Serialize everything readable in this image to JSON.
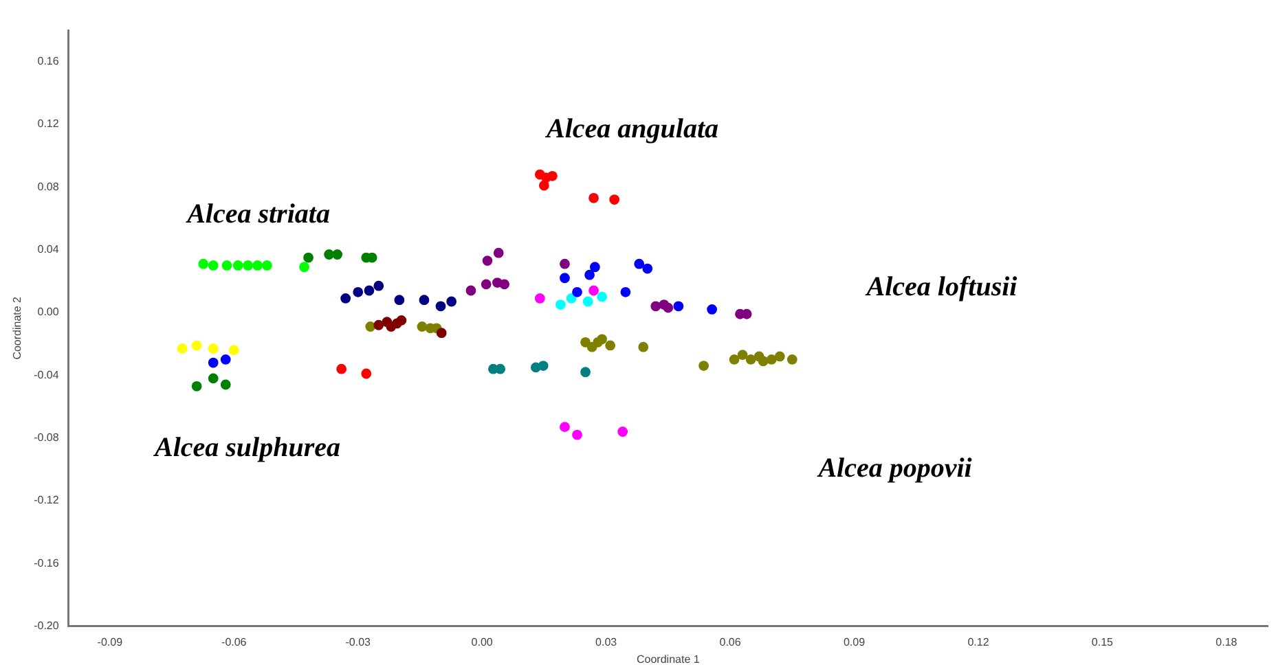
{
  "chart_data": {
    "type": "scatter",
    "xlabel": "Coordinate 1",
    "ylabel": "Coordinate 2",
    "xlim": [
      -0.1,
      0.19
    ],
    "ylim": [
      -0.2,
      0.18
    ],
    "xticks": [
      -0.09,
      -0.06,
      -0.03,
      {
        "value": 0,
        "label": "0.00"
      },
      0.03,
      0.06,
      0.09,
      0.12,
      0.15,
      0.18
    ],
    "yticks": [
      {
        "value": -0.2,
        "label": "-0.20"
      },
      -0.16,
      -0.12,
      -0.08,
      -0.04,
      {
        "value": 0,
        "label": "0.00"
      },
      0.04,
      0.08,
      0.12,
      0.16
    ],
    "grid": false,
    "legend": false,
    "marker": "circle",
    "series": [
      {
        "color": "#ff0000",
        "x": [
          0.014,
          0.0155,
          0.015,
          0.017,
          0.027,
          0.032,
          -0.034,
          -0.028
        ],
        "values": [
          0.088,
          0.086,
          0.081,
          0.087,
          0.073,
          0.072,
          -0.036,
          -0.039
        ]
      },
      {
        "color": "#00ff00",
        "x": [
          -0.0674,
          -0.065,
          -0.0617,
          -0.059,
          -0.0566,
          -0.0543,
          -0.052,
          -0.043
        ],
        "values": [
          0.031,
          0.03,
          0.03,
          0.03,
          0.03,
          0.03,
          0.03,
          0.029
        ]
      },
      {
        "color": "#008000",
        "x": [
          -0.042,
          -0.037,
          -0.035,
          -0.028,
          -0.0266
        ],
        "values": [
          0.035,
          0.037,
          0.037,
          0.035,
          0.035
        ]
      },
      {
        "color": "#008000",
        "x": [
          -0.069,
          -0.065,
          -0.062
        ],
        "values": [
          -0.047,
          -0.042,
          -0.046
        ]
      },
      {
        "color": "#ffff00",
        "x": [
          -0.0725,
          -0.069,
          -0.065,
          -0.06
        ],
        "values": [
          -0.023,
          -0.021,
          -0.023,
          -0.024
        ]
      },
      {
        "color": "#0000ff",
        "x": [
          -0.065,
          -0.062,
          0.02,
          0.026,
          0.0273,
          0.038,
          0.04,
          0.023,
          0.0347,
          0.0475,
          0.0556
        ],
        "values": [
          -0.032,
          -0.03,
          0.022,
          0.024,
          0.029,
          0.031,
          0.028,
          0.013,
          0.013,
          0.004,
          0.002
        ]
      },
      {
        "color": "#000080",
        "x": [
          -0.033,
          -0.03,
          -0.0273,
          -0.025,
          -0.02,
          -0.014,
          -0.01,
          -0.0074
        ],
        "values": [
          0.009,
          0.013,
          0.014,
          0.017,
          0.008,
          0.008,
          0.004,
          0.007
        ]
      },
      {
        "color": "#800000",
        "x": [
          -0.025,
          -0.023,
          -0.022,
          -0.0206,
          -0.0195,
          -0.0098
        ],
        "values": [
          -0.008,
          -0.006,
          -0.009,
          -0.007,
          -0.005,
          -0.013
        ]
      },
      {
        "color": "#808000",
        "x": [
          -0.027,
          -0.0145,
          -0.0125,
          -0.011,
          0.025,
          0.0266,
          0.028,
          0.029,
          0.031,
          0.039,
          0.0536,
          0.061,
          0.063,
          0.065,
          0.067,
          0.068,
          0.07,
          0.072,
          0.075
        ],
        "values": [
          -0.009,
          -0.009,
          -0.01,
          -0.01,
          -0.019,
          -0.022,
          -0.019,
          -0.017,
          -0.021,
          -0.022,
          -0.034,
          -0.03,
          -0.027,
          -0.03,
          -0.028,
          -0.031,
          -0.03,
          -0.028,
          -0.03
        ]
      },
      {
        "color": "#008080",
        "x": [
          0.0027,
          0.0044,
          0.013,
          0.0148,
          0.025
        ],
        "values": [
          -0.036,
          -0.036,
          -0.035,
          -0.034,
          -0.038
        ]
      },
      {
        "color": "#800080",
        "x": [
          0.0013,
          0.004,
          -0.0027,
          0.001,
          0.0037,
          0.0054,
          0.02,
          0.042,
          0.044,
          0.045,
          0.0624,
          0.064
        ],
        "values": [
          0.033,
          0.038,
          0.014,
          0.018,
          0.019,
          0.018,
          0.031,
          0.004,
          0.005,
          0.003,
          -0.001,
          -0.001
        ]
      },
      {
        "color": "#00ffff",
        "x": [
          0.019,
          0.0216,
          0.0256,
          0.029
        ],
        "values": [
          0.005,
          0.009,
          0.007,
          0.01
        ]
      },
      {
        "color": "#ff00ff",
        "x": [
          0.014,
          0.027,
          0.02,
          0.023,
          0.034
        ],
        "values": [
          0.009,
          0.014,
          -0.073,
          -0.078,
          -0.076
        ]
      }
    ],
    "annotations": [
      "Alcea angulata",
      "Alcea striata",
      "Alcea loftusii",
      "Alcea sulphurea",
      "Alcea popovii"
    ]
  }
}
